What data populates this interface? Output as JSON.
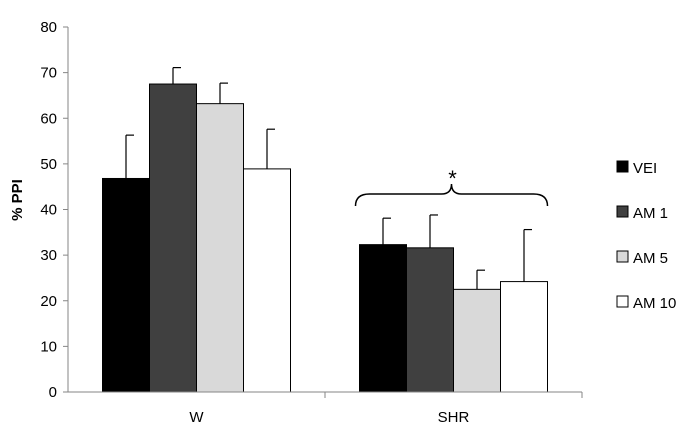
{
  "chart_data": {
    "type": "bar",
    "ylabel": "% PPI",
    "xlabel": "",
    "ylim": [
      0,
      80
    ],
    "yticks": [
      0,
      10,
      20,
      30,
      40,
      50,
      60,
      70,
      80
    ],
    "categories": [
      "W",
      "SHR"
    ],
    "series": [
      {
        "name": "VEI",
        "color": "#000000",
        "values": [
          46.8,
          32.3
        ],
        "errors": [
          9.5,
          5.8
        ]
      },
      {
        "name": "AM 1",
        "color": "#404040",
        "values": [
          67.5,
          31.6
        ],
        "errors": [
          3.6,
          7.2
        ]
      },
      {
        "name": "AM 5",
        "color": "#d9d9d9",
        "values": [
          63.2,
          22.5
        ],
        "errors": [
          4.5,
          4.2
        ]
      },
      {
        "name": "AM 10",
        "color": "#ffffff",
        "values": [
          48.9,
          24.2
        ],
        "errors": [
          8.7,
          11.4
        ]
      }
    ],
    "legend_position": "right",
    "annotations": [
      {
        "text": "*",
        "category": "SHR",
        "kind": "brace"
      }
    ]
  }
}
